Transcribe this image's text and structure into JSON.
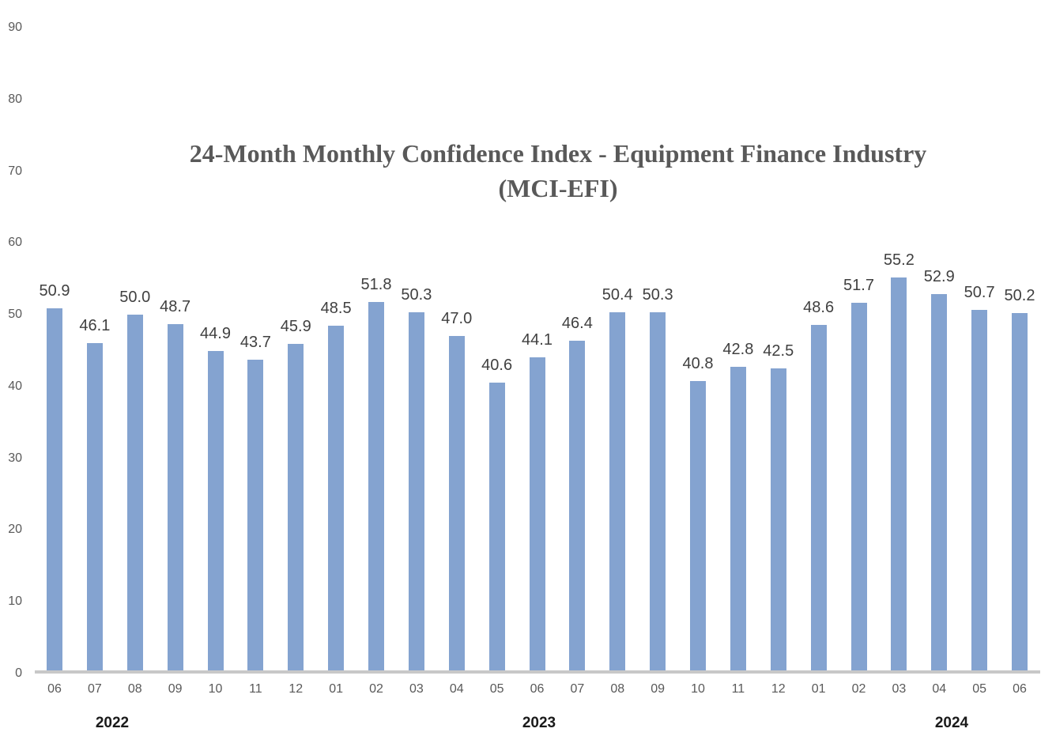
{
  "chart_data": {
    "type": "bar",
    "title": "24-Month Monthly Confidence Index - Equipment Finance Industry (MCI-EFI)",
    "title_lines": [
      "24-Month Monthly Confidence Index - Equipment Finance Industry",
      "(MCI-EFI)"
    ],
    "categories": [
      "06",
      "07",
      "08",
      "09",
      "10",
      "11",
      "12",
      "01",
      "02",
      "03",
      "04",
      "05",
      "06",
      "07",
      "08",
      "09",
      "10",
      "11",
      "12",
      "01",
      "02",
      "03",
      "04",
      "05",
      "06"
    ],
    "values": [
      50.9,
      46.1,
      50.0,
      48.7,
      44.9,
      43.7,
      45.9,
      48.5,
      51.8,
      50.3,
      47.0,
      40.6,
      44.1,
      46.4,
      50.4,
      50.3,
      40.8,
      42.8,
      42.5,
      48.6,
      51.7,
      55.2,
      52.9,
      50.7,
      50.2
    ],
    "data_labels_visible": true,
    "data_label_decimals": 1,
    "xlabel": "",
    "ylabel": "",
    "ylim": [
      0,
      90
    ],
    "y_ticks": [
      0,
      10,
      20,
      30,
      40,
      50,
      60,
      70,
      80,
      90
    ],
    "grid": false,
    "legend": "none",
    "year_groups": [
      {
        "label": "2022",
        "months": [
          "06",
          "07",
          "08",
          "09",
          "10",
          "11",
          "12"
        ]
      },
      {
        "label": "2023",
        "months": [
          "01",
          "02",
          "03",
          "04",
          "05",
          "06",
          "07",
          "08",
          "09",
          "10",
          "11",
          "12"
        ]
      },
      {
        "label": "2024",
        "months": [
          "01",
          "02",
          "03",
          "04",
          "05",
          "06"
        ]
      }
    ],
    "year_label_x_hints": [
      142,
      682,
      1204
    ],
    "colors": {
      "bar_fill": "#84A3D0",
      "data_label": "#404040",
      "axis_tick_label": "#595959",
      "year_label": "#1a1a1a",
      "title": "#595959",
      "axis_line": "#c8c8c8",
      "background": "#ffffff"
    }
  }
}
